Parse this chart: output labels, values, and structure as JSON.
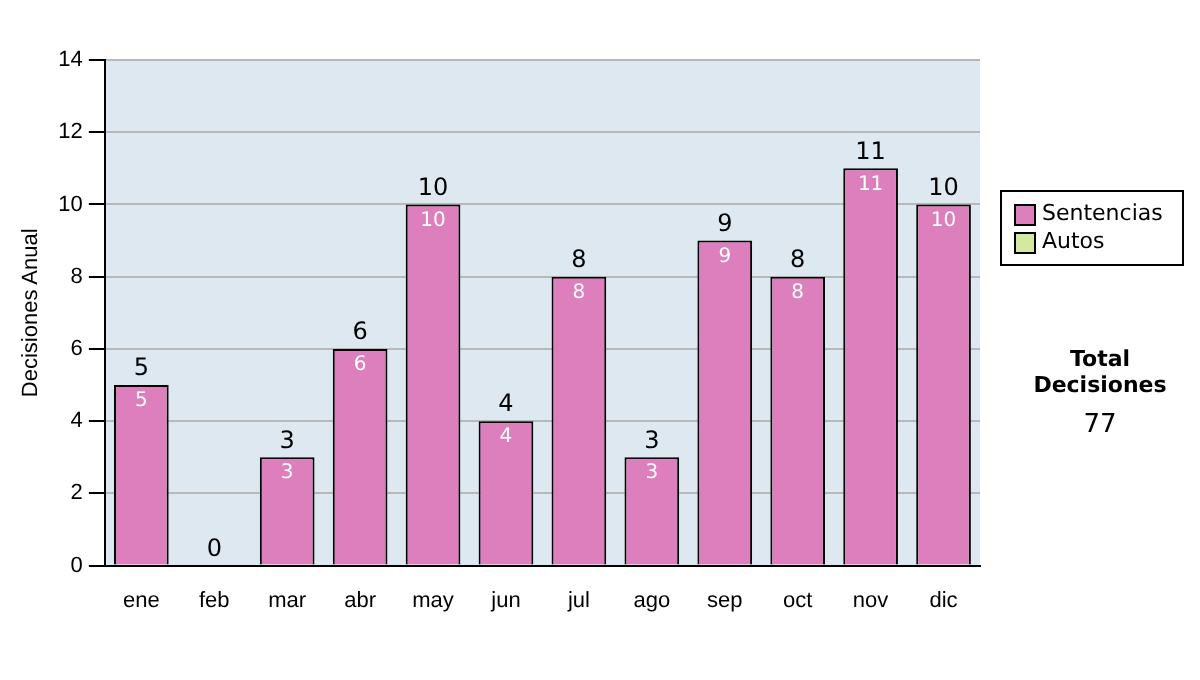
{
  "chart_data": {
    "type": "bar",
    "ylabel": "Decisiones Anual",
    "categories": [
      "ene",
      "feb",
      "mar",
      "abr",
      "may",
      "jun",
      "jul",
      "ago",
      "sep",
      "oct",
      "nov",
      "dic"
    ],
    "series": [
      {
        "name": "Sentencias",
        "color": "#dd7fbd",
        "values": [
          5,
          0,
          3,
          6,
          10,
          4,
          8,
          3,
          9,
          8,
          11,
          10
        ],
        "value_labels": [
          "5",
          null,
          "3",
          "6",
          "10",
          "4",
          "8",
          "3",
          "9",
          "8",
          "11",
          "10"
        ]
      },
      {
        "name": "Autos",
        "color": "#d4e8a0",
        "values": [
          0,
          0,
          0,
          0,
          0,
          0,
          0,
          0,
          0,
          0,
          0,
          0
        ]
      }
    ],
    "stacked": true,
    "totals": [
      "5",
      "0",
      "3",
      "6",
      "10",
      "4",
      "8",
      "3",
      "9",
      "8",
      "11",
      "10"
    ],
    "ylim": [
      0,
      14
    ],
    "yticks": [
      0,
      2,
      4,
      6,
      8,
      10,
      12,
      14
    ],
    "grid": "y",
    "legend": "right",
    "annotations": [
      "Total Decisiones",
      "77"
    ]
  }
}
